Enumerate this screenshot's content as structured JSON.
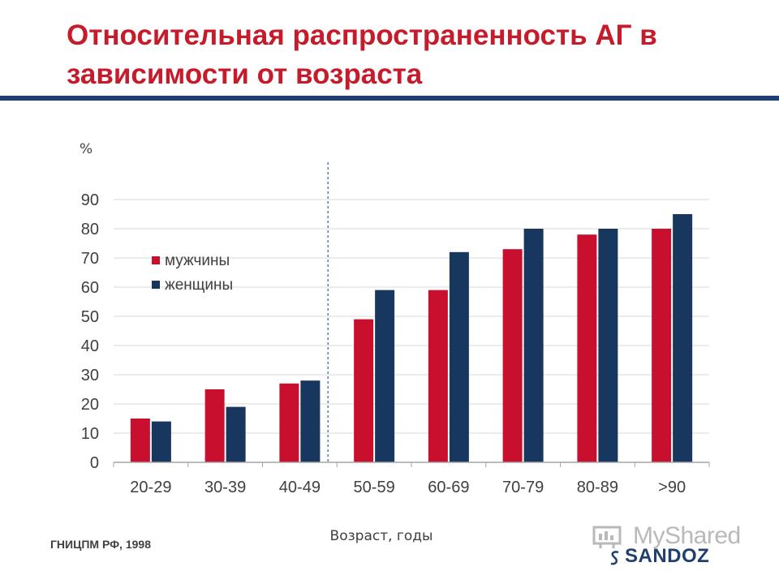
{
  "slide": {
    "title": "Относительная распространенность АГ в зависимости от возраста",
    "source": "ГНИЦПМ РФ, 1998",
    "brand": "SANDOZ",
    "watermark": "MyShared"
  },
  "colors": {
    "title": "#c61b2b",
    "rule": "#1f3f6e",
    "men": "#c8102e",
    "women": "#17375e",
    "grid": "#d9d9d9"
  },
  "chart_data": {
    "type": "bar",
    "title": "",
    "ylabel": "%",
    "xlabel": "Возраст, годы",
    "categories": [
      "20-29",
      "30-39",
      "40-49",
      "50-59",
      "60-69",
      "70-79",
      "80-89",
      ">90"
    ],
    "series": [
      {
        "name": "мужчины",
        "color": "#c8102e",
        "values": [
          15,
          25,
          27,
          49,
          59,
          73,
          78,
          80
        ]
      },
      {
        "name": "женщины",
        "color": "#17375e",
        "values": [
          14,
          19,
          28,
          59,
          72,
          80,
          80,
          85
        ]
      }
    ],
    "ylim": [
      0,
      90
    ],
    "yticks": [
      0,
      10,
      20,
      30,
      40,
      50,
      60,
      70,
      80,
      90
    ],
    "grid": true,
    "legend": "top-left",
    "divider_after_category": "40-49"
  }
}
